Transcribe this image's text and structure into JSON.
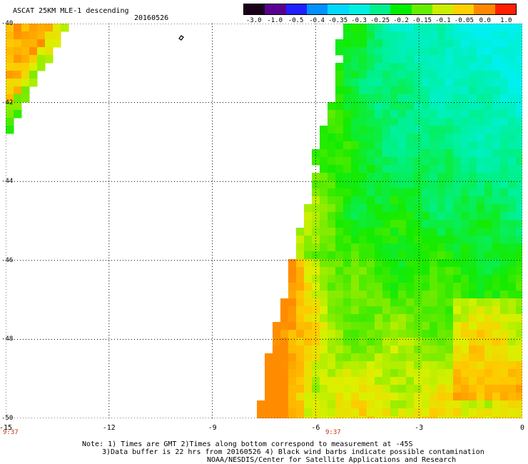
{
  "header": {
    "title": "ASCAT 25KM MLE-1 descending",
    "date": "20160526"
  },
  "color_scale": {
    "labels": [
      "-3.0",
      "-1.0",
      "-0.5",
      "-0.4",
      "-0.35",
      "-0.3",
      "-0.25",
      "-0.2",
      "-0.15",
      "-0.1",
      "-0.05",
      "0.0",
      "1.0"
    ],
    "colors": [
      "#1a0018",
      "#5a0090",
      "#2020ff",
      "#0090ff",
      "#00d8ff",
      "#00f0e0",
      "#00f090",
      "#00ee00",
      "#66ee00",
      "#ccee00",
      "#ffd000",
      "#ff8800",
      "#ff2000"
    ]
  },
  "map": {
    "lat_labels": [
      "-40",
      "-42",
      "-44",
      "-46",
      "-48",
      "-50"
    ],
    "lon_labels": [
      "-15",
      "-12",
      "-9",
      "-6",
      "-3",
      "0"
    ],
    "lat_range": [
      -50,
      -40
    ],
    "lon_range": [
      -15,
      0
    ],
    "grid": true
  },
  "times": {
    "left": "9:37",
    "right": "9:37"
  },
  "notes": {
    "line1": "Note: 1) Times are GMT 2)Times along bottom correspond to measurement at -45S",
    "line2": "3)Data buffer is 22 hrs from 20160526 4) Black wind barbs indicate possible contamination",
    "line3": "NOAA/NESDIS/Center for Satellite Applications and Research"
  }
}
